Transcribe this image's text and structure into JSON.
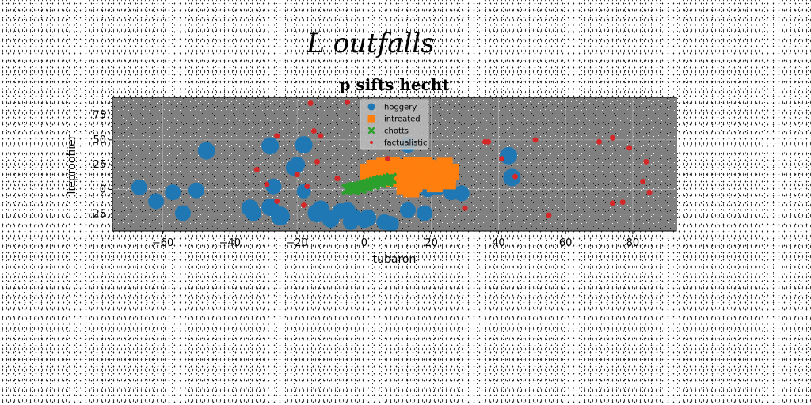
{
  "figure": {
    "suptitle": "L outfalls"
  },
  "chart_data": {
    "type": "scatter",
    "title": "p sifts hecht",
    "xlabel": "tubaron",
    "ylabel": "lieproofiier",
    "xlim": [
      -75,
      93
    ],
    "ylim": [
      -42,
      93
    ],
    "xticks": [
      -60,
      -40,
      -20,
      0,
      20,
      40,
      60,
      80
    ],
    "xtick_labels": [
      "−60",
      "−40",
      "−20",
      "0",
      "20",
      "40",
      "60",
      "80"
    ],
    "yticks": [
      -25,
      0,
      25,
      50,
      75
    ],
    "ytick_labels": [
      "−25",
      "0",
      "25",
      "50",
      "75"
    ],
    "grid": true,
    "legend": {
      "position": "top-center"
    },
    "background_color": "#808080",
    "series": [
      {
        "name": "hoggery",
        "color": "#1f77b4",
        "marker": "circle",
        "points": [
          [
            -67,
            2,
            10
          ],
          [
            -62,
            -12,
            10
          ],
          [
            -57,
            -3,
            10
          ],
          [
            -54,
            -24,
            10
          ],
          [
            -50,
            -1,
            10
          ],
          [
            -47,
            39,
            11
          ],
          [
            -34,
            -19,
            11
          ],
          [
            -33,
            -24,
            10
          ],
          [
            -28,
            -18,
            11
          ],
          [
            -28,
            44,
            11
          ],
          [
            -27,
            3,
            10
          ],
          [
            -25,
            -27,
            12
          ],
          [
            -21,
            22,
            10
          ],
          [
            -20,
            25,
            10
          ],
          [
            -18,
            45,
            11
          ],
          [
            -18,
            -2,
            9
          ],
          [
            -14,
            -24,
            12
          ],
          [
            -13,
            -20,
            11
          ],
          [
            -10,
            -30,
            11
          ],
          [
            -7,
            -22,
            10
          ],
          [
            -5,
            -21,
            10
          ],
          [
            -4,
            -33,
            10
          ],
          [
            -3,
            -28,
            10
          ],
          [
            0,
            -31,
            10
          ],
          [
            1,
            -29,
            11
          ],
          [
            1,
            18,
            9
          ],
          [
            6,
            -33,
            10
          ],
          [
            8,
            -35,
            10
          ],
          [
            13,
            -21,
            10
          ],
          [
            18,
            -24,
            10
          ],
          [
            19,
            0,
            10
          ],
          [
            22,
            2,
            10
          ],
          [
            26,
            -3,
            10
          ],
          [
            29,
            -4,
            10
          ],
          [
            43,
            34,
            11
          ],
          [
            44,
            12,
            11
          ],
          [
            13,
            45,
            10
          ],
          [
            18,
            14,
            10
          ]
        ]
      },
      {
        "name": "intreated",
        "color": "#ff7f0e",
        "marker": "square",
        "points": [
          [
            1,
            18,
            10
          ],
          [
            3,
            22,
            10
          ],
          [
            5,
            20,
            10
          ],
          [
            7,
            17,
            10
          ],
          [
            8,
            24,
            11
          ],
          [
            10,
            15,
            10
          ],
          [
            11,
            22,
            11
          ],
          [
            12,
            18,
            11
          ],
          [
            13,
            10,
            10
          ],
          [
            14,
            25,
            10
          ],
          [
            15,
            5,
            10
          ],
          [
            16,
            20,
            10
          ],
          [
            17,
            13,
            11
          ],
          [
            18,
            8,
            10
          ],
          [
            19,
            22,
            10
          ],
          [
            20,
            15,
            11
          ],
          [
            21,
            5,
            10
          ],
          [
            22,
            20,
            10
          ],
          [
            23,
            12,
            10
          ],
          [
            24,
            24,
            10
          ],
          [
            25,
            8,
            10
          ],
          [
            26,
            18,
            10
          ],
          [
            12,
            3,
            10
          ],
          [
            9,
            10,
            10
          ],
          [
            6,
            24,
            10
          ],
          [
            3,
            12,
            10
          ],
          [
            14,
            0,
            10
          ],
          [
            18,
            25,
            10
          ]
        ]
      },
      {
        "name": "chotts",
        "color": "#2ca02c",
        "marker": "x",
        "points": [
          [
            -5,
            0,
            5
          ],
          [
            -4,
            1,
            5
          ],
          [
            -3,
            2,
            5
          ],
          [
            -2,
            2,
            5
          ],
          [
            -1,
            3,
            5
          ],
          [
            0,
            4,
            5
          ],
          [
            1,
            5,
            5
          ],
          [
            2,
            6,
            5
          ],
          [
            3,
            7,
            5
          ],
          [
            4,
            8,
            5
          ],
          [
            5,
            9,
            5
          ],
          [
            6,
            9,
            5
          ],
          [
            7,
            10,
            5
          ],
          [
            8,
            11,
            5
          ],
          [
            -3,
            0,
            5
          ],
          [
            -1,
            1,
            5
          ],
          [
            1,
            3,
            5
          ],
          [
            3,
            5,
            5
          ],
          [
            5,
            7,
            5
          ],
          [
            7,
            8,
            5
          ]
        ]
      },
      {
        "name": "factualistic",
        "color": "#d62728",
        "marker": "circle",
        "points": [
          [
            -16,
            87,
            3.5
          ],
          [
            -5,
            88,
            3.5
          ],
          [
            -15,
            59,
            3.5
          ],
          [
            -13,
            54,
            3.5
          ],
          [
            -26,
            54,
            3.5
          ],
          [
            -32,
            20,
            3.5
          ],
          [
            -29,
            5,
            3.5
          ],
          [
            -26,
            -12,
            3.5
          ],
          [
            -18,
            -16,
            3.5
          ],
          [
            -17,
            3,
            3.5
          ],
          [
            -14,
            28,
            3.5
          ],
          [
            -8,
            11,
            3.5
          ],
          [
            -20,
            15,
            3.5
          ],
          [
            7,
            31,
            3.5
          ],
          [
            30,
            -19,
            3.5
          ],
          [
            36,
            48,
            3.5
          ],
          [
            37,
            48,
            3.5
          ],
          [
            41,
            31,
            3.5
          ],
          [
            45,
            13,
            3.5
          ],
          [
            51,
            50,
            3.5
          ],
          [
            55,
            -26,
            3.5
          ],
          [
            70,
            48,
            3.5
          ],
          [
            74,
            52,
            3.5
          ],
          [
            74,
            -14,
            3.5
          ],
          [
            77,
            -13,
            3.5
          ],
          [
            79,
            42,
            3.5
          ],
          [
            83,
            8,
            3.5
          ],
          [
            84,
            28,
            3.5
          ],
          [
            85,
            -3,
            3.5
          ]
        ]
      }
    ]
  }
}
